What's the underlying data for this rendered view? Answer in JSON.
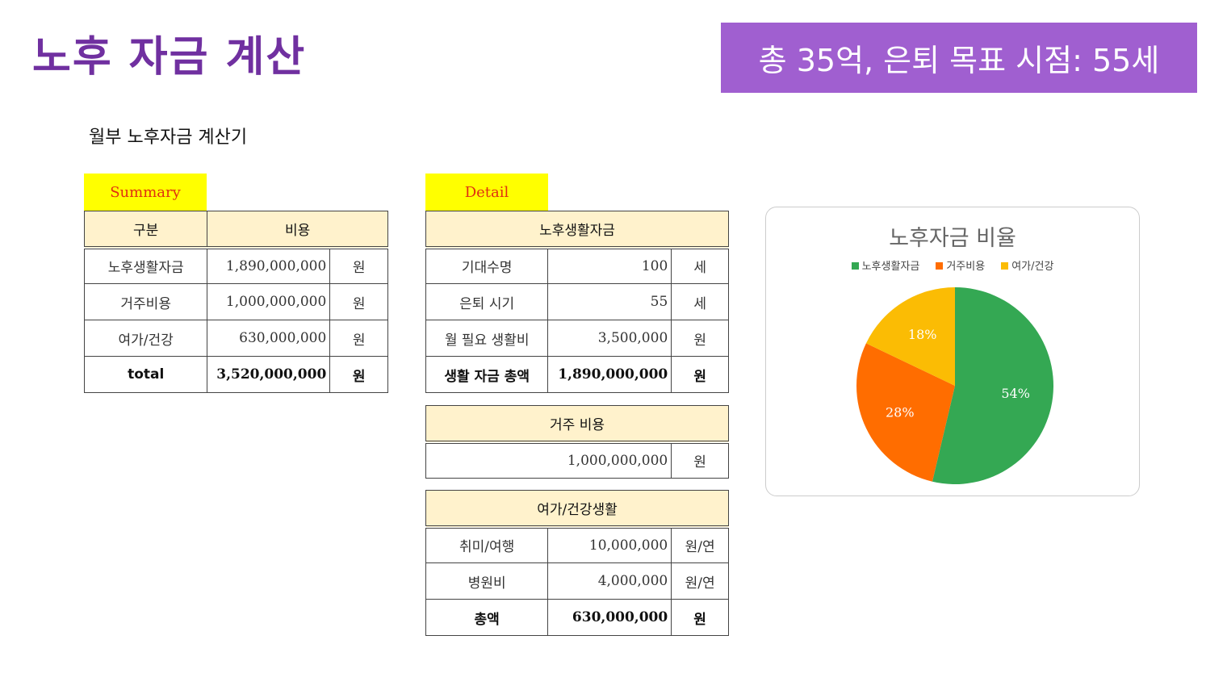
{
  "title": "노후 자금 계산",
  "banner": "총 35억, 은퇴 목표 시점: 55세",
  "subtitle": "월부 노후자금 계산기",
  "summary": {
    "tag": "Summary",
    "headers": [
      "구분",
      "비용"
    ],
    "rows": [
      [
        "노후생활자금",
        "1,890,000,000",
        "원"
      ],
      [
        "거주비용",
        "1,000,000,000",
        "원"
      ],
      [
        "여가/건강",
        "630,000,000",
        "원"
      ]
    ],
    "total": [
      "total",
      "3,520,000,000",
      "원"
    ]
  },
  "detail": {
    "tag": "Detail",
    "living": {
      "header": "노후생활자금",
      "rows": [
        [
          "기대수명",
          "100",
          "세"
        ],
        [
          "은퇴 시기",
          "55",
          "세"
        ],
        [
          "월 필요 생활비",
          "3,500,000",
          "원"
        ]
      ],
      "total": [
        "생활 자금 총액",
        "1,890,000,000",
        "원"
      ]
    },
    "housing": {
      "header": "거주 비용",
      "value": "1,000,000,000",
      "unit": "원"
    },
    "leisure": {
      "header": "여가/건강생활",
      "rows": [
        [
          "취미/여행",
          "10,000,000",
          "원/연"
        ],
        [
          "병원비",
          "4,000,000",
          "원/연"
        ]
      ],
      "total": [
        "총액",
        "630,000,000",
        "원"
      ]
    }
  },
  "chart_data": {
    "type": "pie",
    "title": "노후자금 비율",
    "legend_position": "top",
    "categories": [
      "노후생활자금",
      "거주비용",
      "여가/건강"
    ],
    "values": [
      1890000000,
      1000000000,
      630000000
    ],
    "labels": [
      "54%",
      "28%",
      "18%"
    ],
    "colors": [
      "#34a853",
      "#ff6d00",
      "#fbbc04"
    ]
  }
}
